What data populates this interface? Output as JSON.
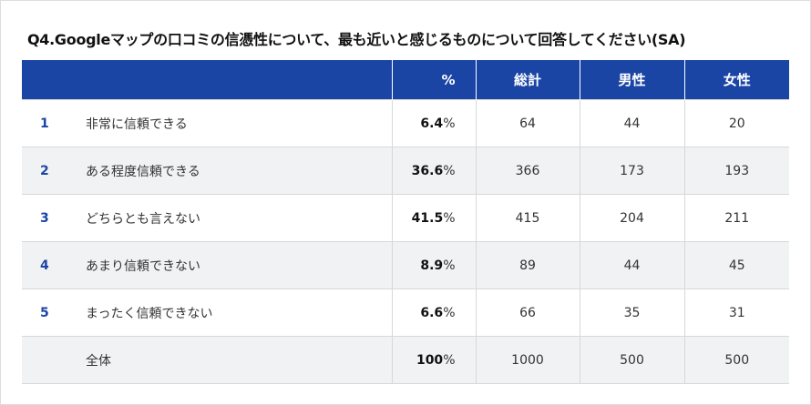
{
  "title": "Q4.Googleマップの口コミの信憑性について、最も近いと感じるものについて回答してください(SA)",
  "colors": {
    "header_bg": "#1b45a5",
    "header_text": "#ffffff",
    "row_alt_bg": "#f1f2f4",
    "number_color": "#1b45a5"
  },
  "table": {
    "headers": {
      "pct": "%",
      "total": "総計",
      "male": "男性",
      "female": "女性"
    },
    "pct_symbol": "%",
    "rows": [
      {
        "num": "1",
        "label": "非常に信頼できる",
        "pct": "6.4",
        "total": "64",
        "male": "44",
        "female": "20"
      },
      {
        "num": "2",
        "label": "ある程度信頼できる",
        "pct": "36.6",
        "total": "366",
        "male": "173",
        "female": "193"
      },
      {
        "num": "3",
        "label": "どちらとも言えない",
        "pct": "41.5",
        "total": "415",
        "male": "204",
        "female": "211"
      },
      {
        "num": "4",
        "label": "あまり信頼できない",
        "pct": "8.9",
        "total": "89",
        "male": "44",
        "female": "45"
      },
      {
        "num": "5",
        "label": "まったく信頼できない",
        "pct": "6.6",
        "total": "66",
        "male": "35",
        "female": "31"
      },
      {
        "num": "",
        "label": "全体",
        "pct": "100",
        "total": "1000",
        "male": "500",
        "female": "500"
      }
    ]
  }
}
